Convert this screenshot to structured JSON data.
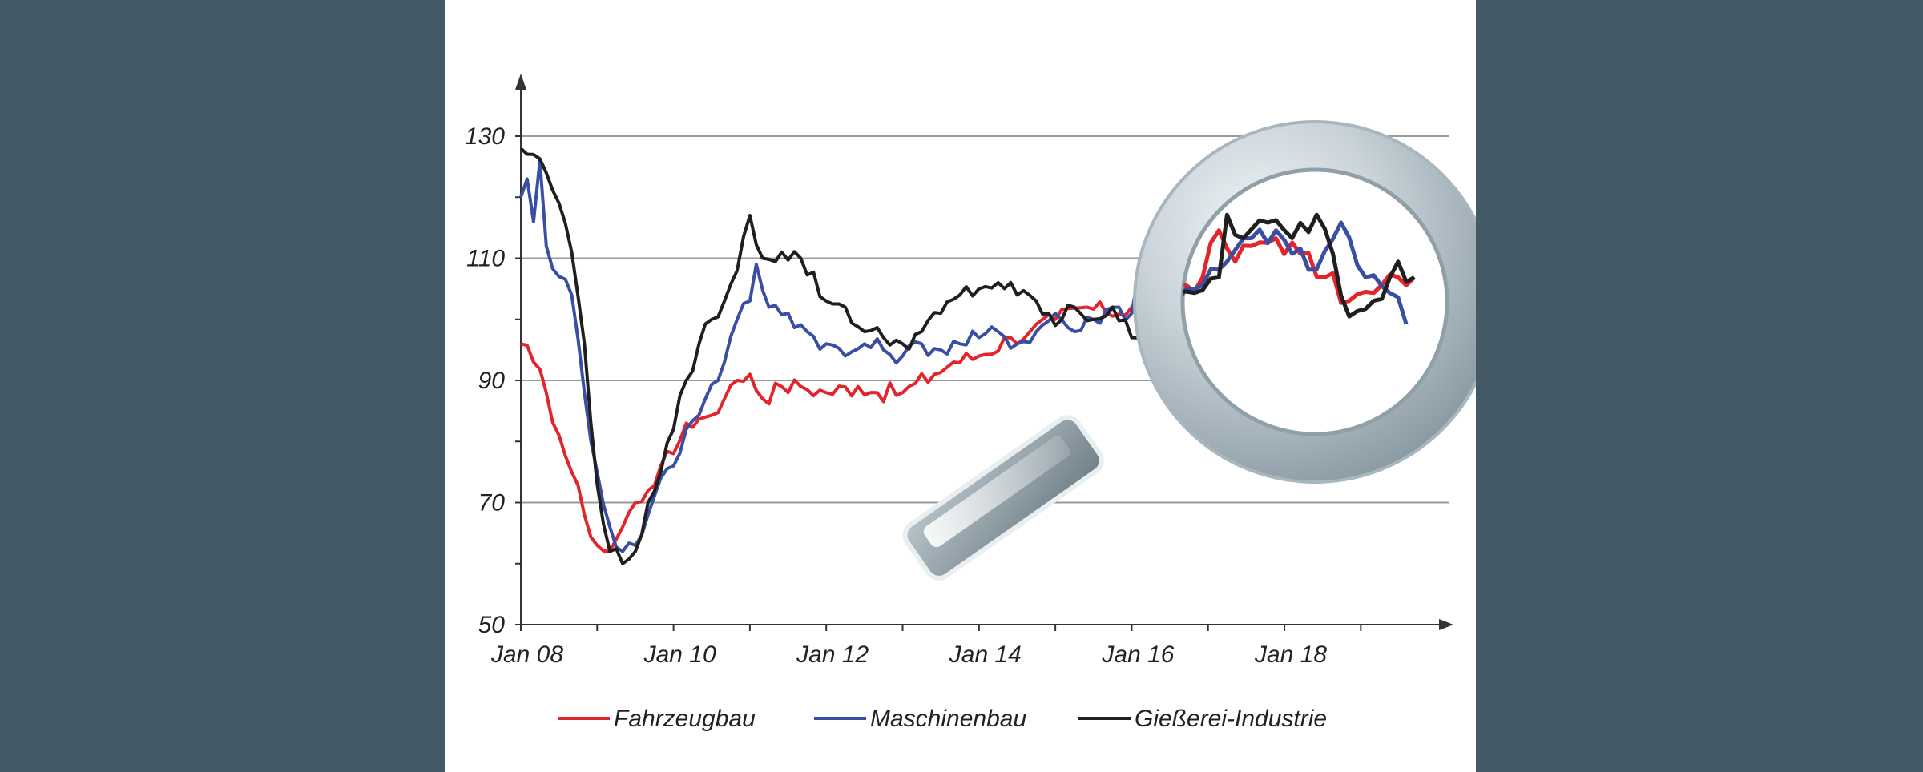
{
  "colors": {
    "background": "#435a66",
    "panel": "#ffffff",
    "Fahrzeugbau": "#e3242b",
    "Maschinenbau": "#3a4fa3",
    "Giesserei": "#1f1f1f"
  },
  "chart_data": {
    "type": "line",
    "title": "",
    "xlabel": "",
    "ylabel": "",
    "x_start": "2008-01",
    "x_end": "2019-06",
    "xlim": [
      "2008-01",
      "2019-06"
    ],
    "ylim": [
      50,
      140
    ],
    "y_ticks": [
      "50",
      "70",
      "90",
      "110",
      "130"
    ],
    "x_ticks": [
      "Jan 08",
      "Jan 10",
      "Jan 12",
      "Jan 14",
      "Jan 16",
      "Jan 18"
    ],
    "grid": "horizontal",
    "legend_position": "bottom",
    "decoration": "magnifying-glass over 2015–2019",
    "series": [
      {
        "name": "Fahrzeugbau",
        "color": "#e3242b",
        "key_points": [
          [
            "2008-01",
            96
          ],
          [
            "2008-03",
            93
          ],
          [
            "2008-05",
            88
          ],
          [
            "2008-07",
            81
          ],
          [
            "2008-09",
            75
          ],
          [
            "2008-11",
            68
          ],
          [
            "2009-01",
            63
          ],
          [
            "2009-03",
            62
          ],
          [
            "2009-05",
            66
          ],
          [
            "2009-07",
            70
          ],
          [
            "2009-09",
            72
          ],
          [
            "2009-11",
            76
          ],
          [
            "2010-01",
            78
          ],
          [
            "2010-03",
            83
          ],
          [
            "2010-06",
            84
          ],
          [
            "2010-09",
            87
          ],
          [
            "2010-11",
            90
          ],
          [
            "2011-01",
            91
          ],
          [
            "2011-03",
            87
          ],
          [
            "2011-06",
            89
          ],
          [
            "2011-09",
            89
          ],
          [
            "2012-01",
            88
          ],
          [
            "2012-06",
            89
          ],
          [
            "2012-09",
            88
          ],
          [
            "2013-01",
            88
          ],
          [
            "2013-06",
            91
          ],
          [
            "2013-09",
            93
          ],
          [
            "2014-01",
            94
          ],
          [
            "2014-06",
            97
          ],
          [
            "2014-09",
            98
          ],
          [
            "2015-01",
            100
          ],
          [
            "2015-06",
            102
          ],
          [
            "2015-09",
            101
          ],
          [
            "2016-01",
            102
          ],
          [
            "2016-04",
            103
          ],
          [
            "2016-07",
            104
          ],
          [
            "2016-10",
            103
          ],
          [
            "2017-01",
            105
          ],
          [
            "2017-04",
            106
          ],
          [
            "2017-06",
            112
          ],
          [
            "2017-08",
            108
          ],
          [
            "2017-10",
            110
          ],
          [
            "2018-01",
            111
          ],
          [
            "2018-04",
            109
          ],
          [
            "2018-07",
            106
          ],
          [
            "2018-10",
            103
          ],
          [
            "2019-01",
            104
          ],
          [
            "2019-04",
            106
          ],
          [
            "2019-06",
            106
          ]
        ]
      },
      {
        "name": "Maschinenbau",
        "color": "#3a4fa3",
        "key_points": [
          [
            "2008-01",
            120
          ],
          [
            "2008-02",
            123
          ],
          [
            "2008-03",
            116
          ],
          [
            "2008-04",
            126
          ],
          [
            "2008-05",
            112
          ],
          [
            "2008-07",
            107
          ],
          [
            "2008-09",
            104
          ],
          [
            "2008-11",
            88
          ],
          [
            "2009-01",
            75
          ],
          [
            "2009-03",
            66
          ],
          [
            "2009-05",
            62
          ],
          [
            "2009-07",
            63
          ],
          [
            "2009-09",
            68
          ],
          [
            "2009-11",
            74
          ],
          [
            "2010-01",
            76
          ],
          [
            "2010-03",
            82
          ],
          [
            "2010-06",
            87
          ],
          [
            "2010-09",
            93
          ],
          [
            "2010-11",
            100
          ],
          [
            "2011-01",
            103
          ],
          [
            "2011-02",
            109
          ],
          [
            "2011-04",
            102
          ],
          [
            "2011-07",
            101
          ],
          [
            "2011-10",
            98
          ],
          [
            "2012-01",
            96
          ],
          [
            "2012-04",
            94
          ],
          [
            "2012-07",
            96
          ],
          [
            "2012-10",
            95
          ],
          [
            "2013-01",
            94
          ],
          [
            "2013-04",
            96
          ],
          [
            "2013-07",
            95
          ],
          [
            "2013-10",
            96
          ],
          [
            "2014-01",
            97
          ],
          [
            "2014-04",
            98
          ],
          [
            "2014-07",
            96
          ],
          [
            "2014-10",
            98
          ],
          [
            "2015-01",
            101
          ],
          [
            "2015-04",
            98
          ],
          [
            "2015-07",
            100
          ],
          [
            "2015-10",
            102
          ],
          [
            "2016-01",
            101
          ],
          [
            "2016-02",
            107
          ],
          [
            "2016-04",
            97
          ],
          [
            "2016-07",
            100
          ],
          [
            "2016-10",
            101
          ],
          [
            "2017-01",
            103
          ],
          [
            "2017-04",
            105
          ],
          [
            "2017-07",
            108
          ],
          [
            "2017-10",
            111
          ],
          [
            "2018-01",
            112
          ],
          [
            "2018-03",
            109
          ],
          [
            "2018-06",
            107
          ],
          [
            "2018-09",
            113
          ],
          [
            "2018-12",
            106
          ],
          [
            "2019-03",
            104
          ],
          [
            "2019-05",
            100
          ]
        ]
      },
      {
        "name": "Gießerei-Industrie",
        "color": "#1f1f1f",
        "key_points": [
          [
            "2008-01",
            128
          ],
          [
            "2008-03",
            127
          ],
          [
            "2008-05",
            124
          ],
          [
            "2008-07",
            119
          ],
          [
            "2008-09",
            111
          ],
          [
            "2008-11",
            96
          ],
          [
            "2009-01",
            73
          ],
          [
            "2009-03",
            62
          ],
          [
            "2009-05",
            60
          ],
          [
            "2009-07",
            62
          ],
          [
            "2009-09",
            70
          ],
          [
            "2009-11",
            75
          ],
          [
            "2010-01",
            82
          ],
          [
            "2010-03",
            90
          ],
          [
            "2010-05",
            96
          ],
          [
            "2010-07",
            100
          ],
          [
            "2010-09",
            103
          ],
          [
            "2010-11",
            108
          ],
          [
            "2011-01",
            117
          ],
          [
            "2011-03",
            110
          ],
          [
            "2011-06",
            111
          ],
          [
            "2011-09",
            110
          ],
          [
            "2012-01",
            103
          ],
          [
            "2012-04",
            102
          ],
          [
            "2012-07",
            98
          ],
          [
            "2012-10",
            97
          ],
          [
            "2013-01",
            96
          ],
          [
            "2013-04",
            98
          ],
          [
            "2013-07",
            101
          ],
          [
            "2013-10",
            104
          ],
          [
            "2014-01",
            105
          ],
          [
            "2014-04",
            106
          ],
          [
            "2014-07",
            104
          ],
          [
            "2014-10",
            103
          ],
          [
            "2015-01",
            99
          ],
          [
            "2015-04",
            102
          ],
          [
            "2015-07",
            100
          ],
          [
            "2015-10",
            102
          ],
          [
            "2016-01",
            97
          ],
          [
            "2016-03",
            95
          ],
          [
            "2016-06",
            99
          ],
          [
            "2016-09",
            103
          ],
          [
            "2016-12",
            102
          ],
          [
            "2017-03",
            104
          ],
          [
            "2017-06",
            106
          ],
          [
            "2017-07",
            114
          ],
          [
            "2017-09",
            111
          ],
          [
            "2017-12",
            113
          ],
          [
            "2018-03",
            111
          ],
          [
            "2018-06",
            114
          ],
          [
            "2018-08",
            109
          ],
          [
            "2018-10",
            101
          ],
          [
            "2019-01",
            103
          ],
          [
            "2019-04",
            108
          ],
          [
            "2019-06",
            106
          ]
        ]
      }
    ]
  }
}
